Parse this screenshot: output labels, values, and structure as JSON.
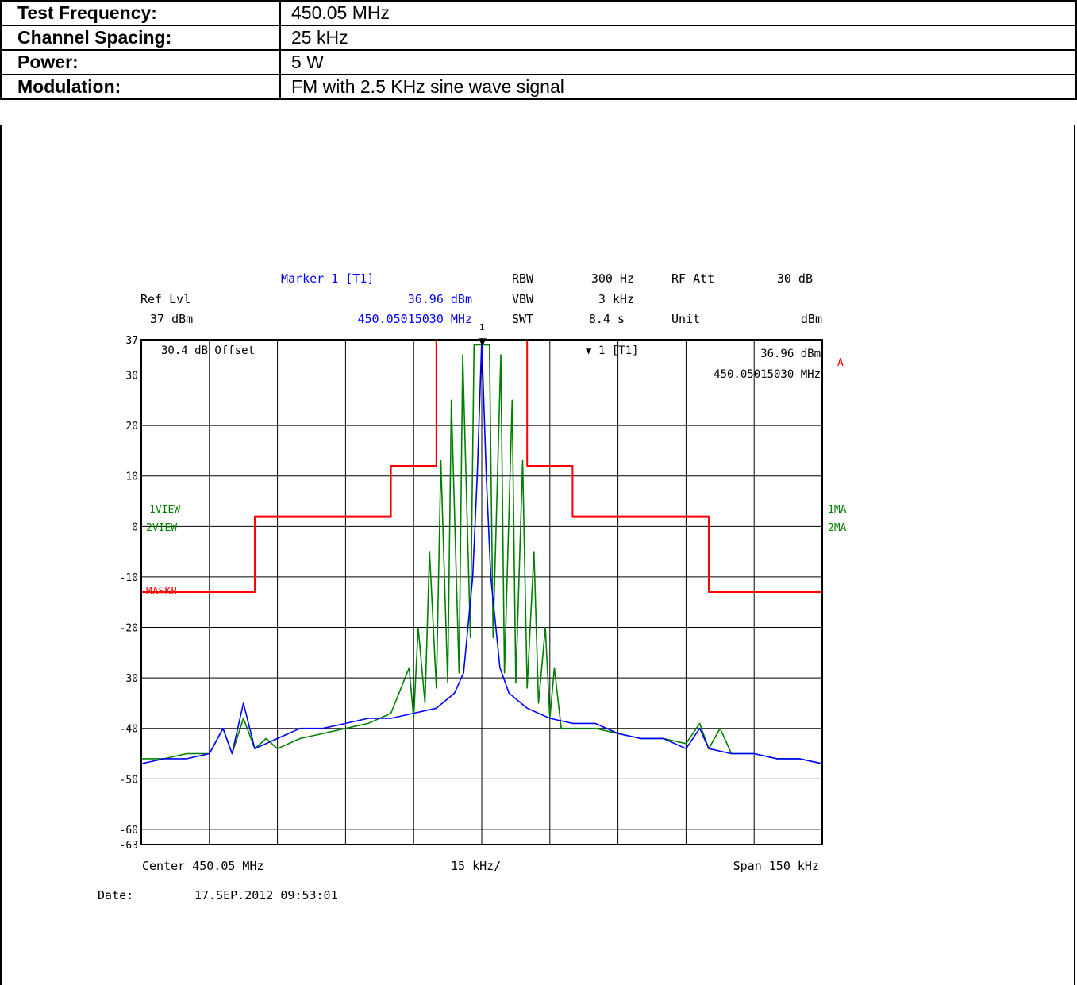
{
  "params": [
    {
      "label": "Test Frequency:",
      "value": "450.05 MHz"
    },
    {
      "label": "Channel Spacing:",
      "value": "25 kHz"
    },
    {
      "label": "Power:",
      "value": "5 W"
    },
    {
      "label": "Modulation:",
      "value": "FM with 2.5 KHz sine wave signal"
    }
  ],
  "header": {
    "marker_title": "Marker 1 [T1]",
    "ref_lvl_label": "Ref Lvl",
    "ref_lvl_value": "37 dBm",
    "marker_level": "36.96 dBm",
    "marker_freq": "450.05015030 MHz",
    "rbw_label": "RBW",
    "rbw_value": "300 Hz",
    "vbw_label": "VBW",
    "vbw_value": "3 kHz",
    "swt_label": "SWT",
    "swt_value": "8.4 s",
    "rf_att_label": "RF Att",
    "rf_att_value": "30 dB",
    "unit_label": "Unit",
    "unit_value": "dBm"
  },
  "screen": {
    "offset_note": "30.4 dB Offset",
    "marker_box_label": "1 [T1]",
    "marker_box_level": "36.96 dBm",
    "marker_box_freq": "450.05015030 MHz",
    "marker_number": "1",
    "trace_label_a": "A",
    "view1": "1VIEW",
    "view2": "2VIEW",
    "ma1": "1MA",
    "ma2": "2MA",
    "mask_label": "MASKB"
  },
  "footer": {
    "center": "Center 450.05 MHz",
    "div": "15 kHz/",
    "span": "Span 150 kHz",
    "date_label": "Date:",
    "date_value": "17.SEP.2012  09:53:01"
  },
  "colors": {
    "mask": "#ff0000",
    "trace_green": "#008000",
    "trace_blue": "#0000ff",
    "marker_text": "#0000ff",
    "grid": "#000000"
  },
  "chart_data": {
    "type": "line",
    "xlabel": "",
    "ylabel": "",
    "x_unit": "kHz offset from 450.05 MHz",
    "xlim": [
      -75,
      75
    ],
    "ylim": [
      -63,
      37
    ],
    "y_ticks": [
      37,
      30,
      20,
      10,
      0,
      -10,
      -20,
      -30,
      -40,
      -50,
      -60,
      -63
    ],
    "grid": true,
    "marker": {
      "x": 0.15,
      "y": 36.96
    },
    "series": [
      {
        "name": "MASKB",
        "color": "#ff0000",
        "step": true,
        "x": [
          -75,
          -50,
          -50,
          -20,
          -20,
          -10,
          -10,
          10,
          10,
          20,
          20,
          50,
          50,
          75
        ],
        "y": [
          -13,
          -13,
          2,
          2,
          12,
          12,
          37,
          37,
          12,
          12,
          2,
          2,
          -13,
          -13
        ]
      },
      {
        "name": "1VIEW",
        "color": "#008000",
        "x": [
          -75,
          -70,
          -65,
          -60,
          -57,
          -55,
          -52.5,
          -50,
          -47.5,
          -45,
          -40,
          -35,
          -30,
          -25,
          -20,
          -16,
          -15,
          -14,
          -12.5,
          -11.5,
          -10,
          -9,
          -7.5,
          -6.7,
          -5,
          -4.2,
          -2.5,
          -1.7,
          0,
          1.7,
          2.5,
          4.2,
          5,
          6.7,
          7.5,
          9,
          10,
          11.5,
          12.5,
          14,
          15,
          16,
          17.5,
          20,
          25,
          30,
          35,
          40,
          45,
          48,
          50,
          52.5,
          55,
          60,
          65,
          70,
          75
        ],
        "y": [
          -46,
          -46,
          -45,
          -45,
          -40,
          -45,
          -38,
          -44,
          -42,
          -44,
          -42,
          -41,
          -40,
          -39,
          -37,
          -28,
          -38,
          -20,
          -35,
          -5,
          -32,
          13,
          -31,
          25,
          -29,
          34,
          -22,
          36,
          36,
          36,
          -22,
          34,
          -29,
          25,
          -31,
          13,
          -32,
          -5,
          -35,
          -20,
          -38,
          -28,
          -40,
          -40,
          -40,
          -41,
          -42,
          -42,
          -43,
          -39,
          -44,
          -40,
          -45,
          -45,
          -46,
          -46,
          -47
        ]
      },
      {
        "name": "2VIEW",
        "color": "#0000ff",
        "x": [
          -75,
          -70,
          -65,
          -60,
          -57,
          -55,
          -52.5,
          -50,
          -45,
          -40,
          -35,
          -30,
          -25,
          -20,
          -15,
          -10,
          -6,
          -4,
          -2,
          -1,
          0,
          1,
          2,
          4,
          6,
          10,
          15,
          20,
          25,
          30,
          35,
          40,
          45,
          48,
          50,
          55,
          60,
          65,
          70,
          75
        ],
        "y": [
          -47,
          -46,
          -46,
          -45,
          -40,
          -45,
          -35,
          -44,
          -42,
          -40,
          -40,
          -39,
          -38,
          -38,
          -37,
          -36,
          -33,
          -29,
          -10,
          10,
          37,
          10,
          -10,
          -28,
          -33,
          -36,
          -38,
          -39,
          -39,
          -41,
          -42,
          -42,
          -44,
          -40,
          -44,
          -45,
          -45,
          -46,
          -46,
          -47
        ]
      }
    ]
  }
}
